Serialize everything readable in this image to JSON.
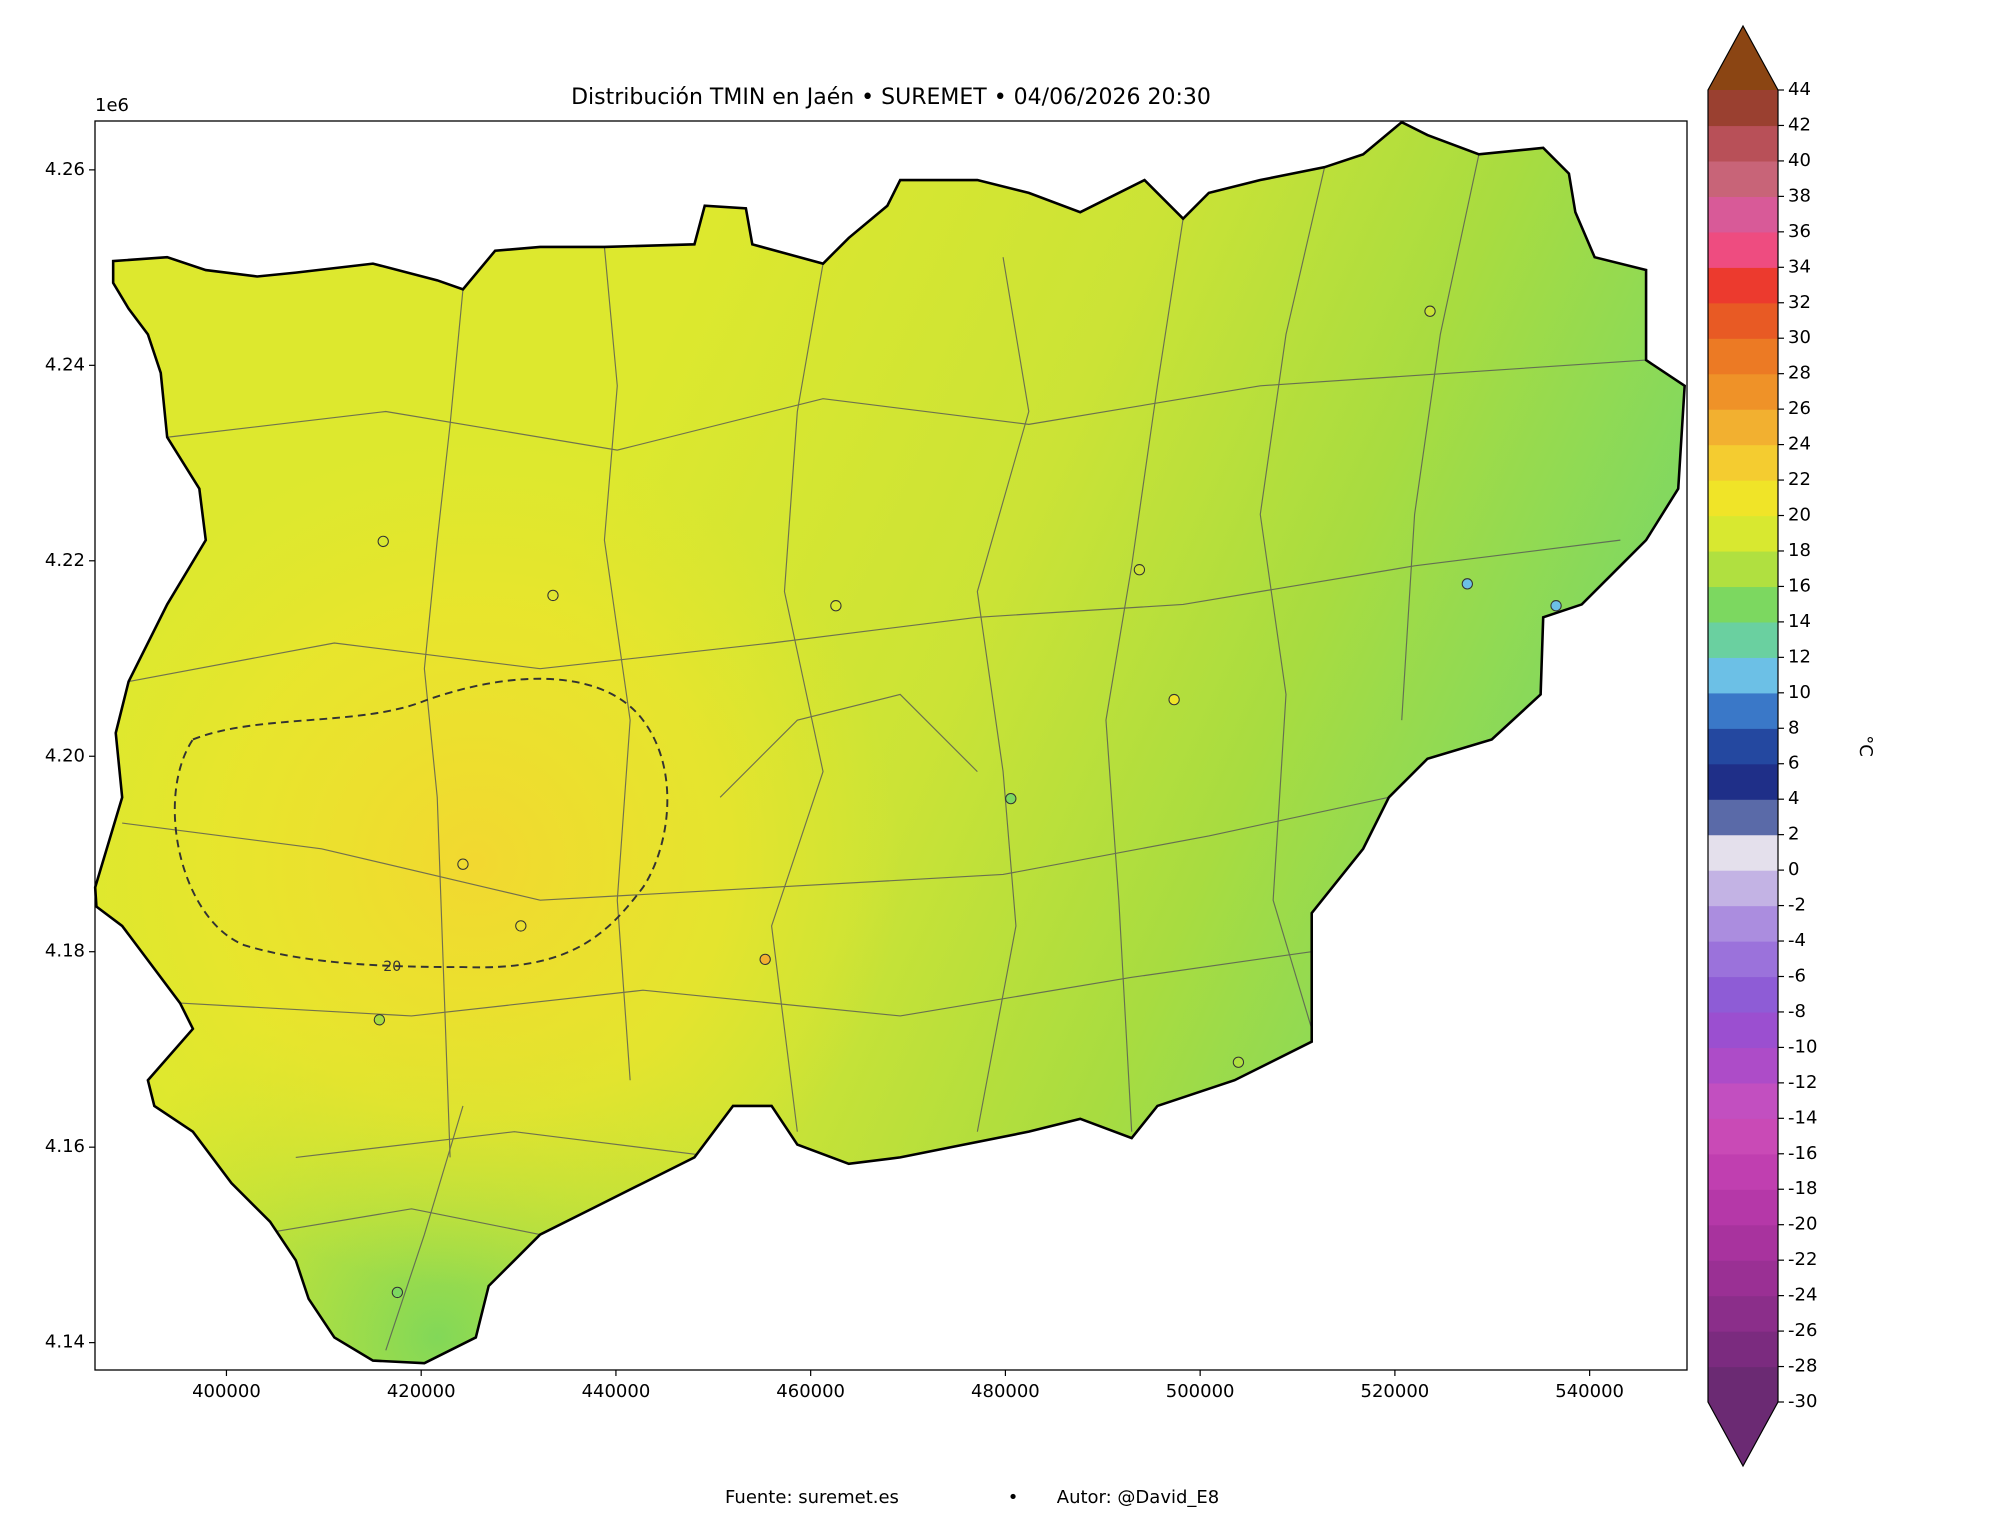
{
  "map": {
    "type": "contour-map",
    "title": "Distribución TMIN en Jaén • SUREMET • 04/06/2026 20:30",
    "offset_label": "1e6",
    "xlim": [
      386500,
      550000
    ],
    "xticks": [
      400000,
      420000,
      440000,
      460000,
      480000,
      500000,
      520000,
      540000
    ],
    "ylim": [
      4137200,
      4265000
    ],
    "yticks": [
      {
        "value": 4140000,
        "label": "4.14"
      },
      {
        "value": 4160000,
        "label": "4.16"
      },
      {
        "value": 4180000,
        "label": "4.18"
      },
      {
        "value": 4200000,
        "label": "4.20"
      },
      {
        "value": 4220000,
        "label": "4.22"
      },
      {
        "value": 4240000,
        "label": "4.24"
      },
      {
        "value": 4260000,
        "label": "4.26"
      }
    ],
    "contour_label": 20,
    "colorbar": {
      "label": "°C",
      "lim": [
        -30,
        44
      ],
      "ticks": [
        -30,
        -28,
        -26,
        -24,
        -22,
        -20,
        -18,
        -16,
        -14,
        -12,
        -10,
        -8,
        -6,
        -4,
        -2,
        0,
        2,
        4,
        6,
        8,
        10,
        12,
        14,
        16,
        18,
        20,
        22,
        24,
        26,
        28,
        30,
        32,
        34,
        36,
        38,
        40,
        42,
        44
      ],
      "colors": [
        "#6b2a73",
        "#7b2b7f",
        "#8b2e8a",
        "#9a3094",
        "#a8339e",
        "#b538a8",
        "#c03fb0",
        "#c94ab6",
        "#c24fc0",
        "#ad4cc8",
        "#9b4fd0",
        "#8e5cd6",
        "#9b72db",
        "#ab8ddf",
        "#c3b3e4",
        "#e4e0ec",
        "#5a6aa8",
        "#1f2f88",
        "#2448a0",
        "#3a78c8",
        "#6cc0e6",
        "#6ad0a0",
        "#7cd860",
        "#b0e040",
        "#d8e830",
        "#f0e428",
        "#f4cc30",
        "#f2b030",
        "#ef9228",
        "#ec7a24",
        "#e85a24",
        "#ec3a2e",
        "#ee4c80",
        "#d85a98",
        "#c86478",
        "#b85058",
        "#9a4030"
      ],
      "under_color": "#6b2a73",
      "over_color": "#8b4513"
    },
    "footer": [
      "Fuente: suremet.es",
      "•",
      "Autor: @David_E8"
    ]
  }
}
